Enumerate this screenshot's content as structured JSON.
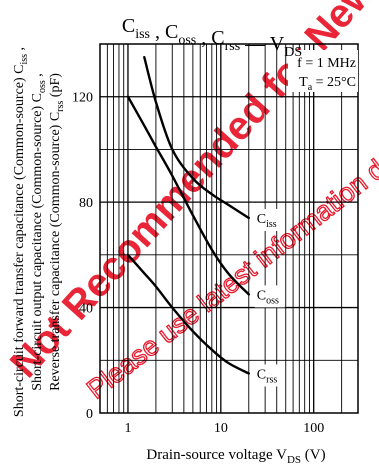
{
  "watermark": {
    "text_upper": "Not Recommended for New Design",
    "text_lower": "Please use latest information datasheet/sclen",
    "color": "#e8192c"
  },
  "chart_data": {
    "type": "line",
    "title": {
      "parts": [
        {
          "main": "C",
          "sub": "iss"
        },
        {
          "main": " , C",
          "sub": "oss"
        },
        {
          "main": " , C",
          "sub": "rss"
        },
        {
          "main": " — V",
          "sub": "DS"
        }
      ]
    },
    "conditions": [
      {
        "main": "f = 1 MHz",
        "sub": "",
        "tail": ""
      },
      {
        "main": "T",
        "sub": "a",
        "tail": " = 25°C"
      }
    ],
    "xlabel": {
      "main": "Drain-source voltage  V",
      "sub": "DS",
      "tail": "  (V)"
    },
    "ylabel_lines": [
      {
        "main": "Short-circuit forward transfer capacitance (Common-source) C",
        "sub": "iss",
        "tail": " ,"
      },
      {
        "main": "Short-circuit output capacitance (Common-source) C",
        "sub": "oss",
        "tail": " ,"
      },
      {
        "main": "Reverse transfer capacitance (Common-source) C",
        "sub": "rss",
        "tail": " (pF)"
      }
    ],
    "x_scale": "log",
    "xlim": [
      0.5,
      300
    ],
    "ylim": [
      0,
      140
    ],
    "x_ticks": [
      1,
      10,
      100
    ],
    "x_tick_labels": [
      "1",
      "10",
      "100"
    ],
    "y_ticks": [
      0,
      40,
      80,
      120
    ],
    "y_tick_labels": [
      "0",
      "40",
      "80",
      "120"
    ],
    "grid": true,
    "series": [
      {
        "name": "C",
        "sub": "iss",
        "x": [
          1.5,
          2,
          3,
          5,
          8,
          12,
          20
        ],
        "y": [
          135,
          118,
          100,
          89,
          83,
          79,
          74
        ]
      },
      {
        "name": "C",
        "sub": "oss",
        "x": [
          1,
          1.5,
          2,
          3,
          5,
          8,
          12,
          20
        ],
        "y": [
          120,
          109,
          101,
          90,
          75,
          62,
          53,
          45
        ]
      },
      {
        "name": "C",
        "sub": "rss",
        "x": [
          1,
          1.5,
          2,
          3,
          5,
          8,
          12,
          20
        ],
        "y": [
          60,
          53,
          48,
          40,
          31,
          24,
          19,
          15
        ]
      }
    ]
  }
}
